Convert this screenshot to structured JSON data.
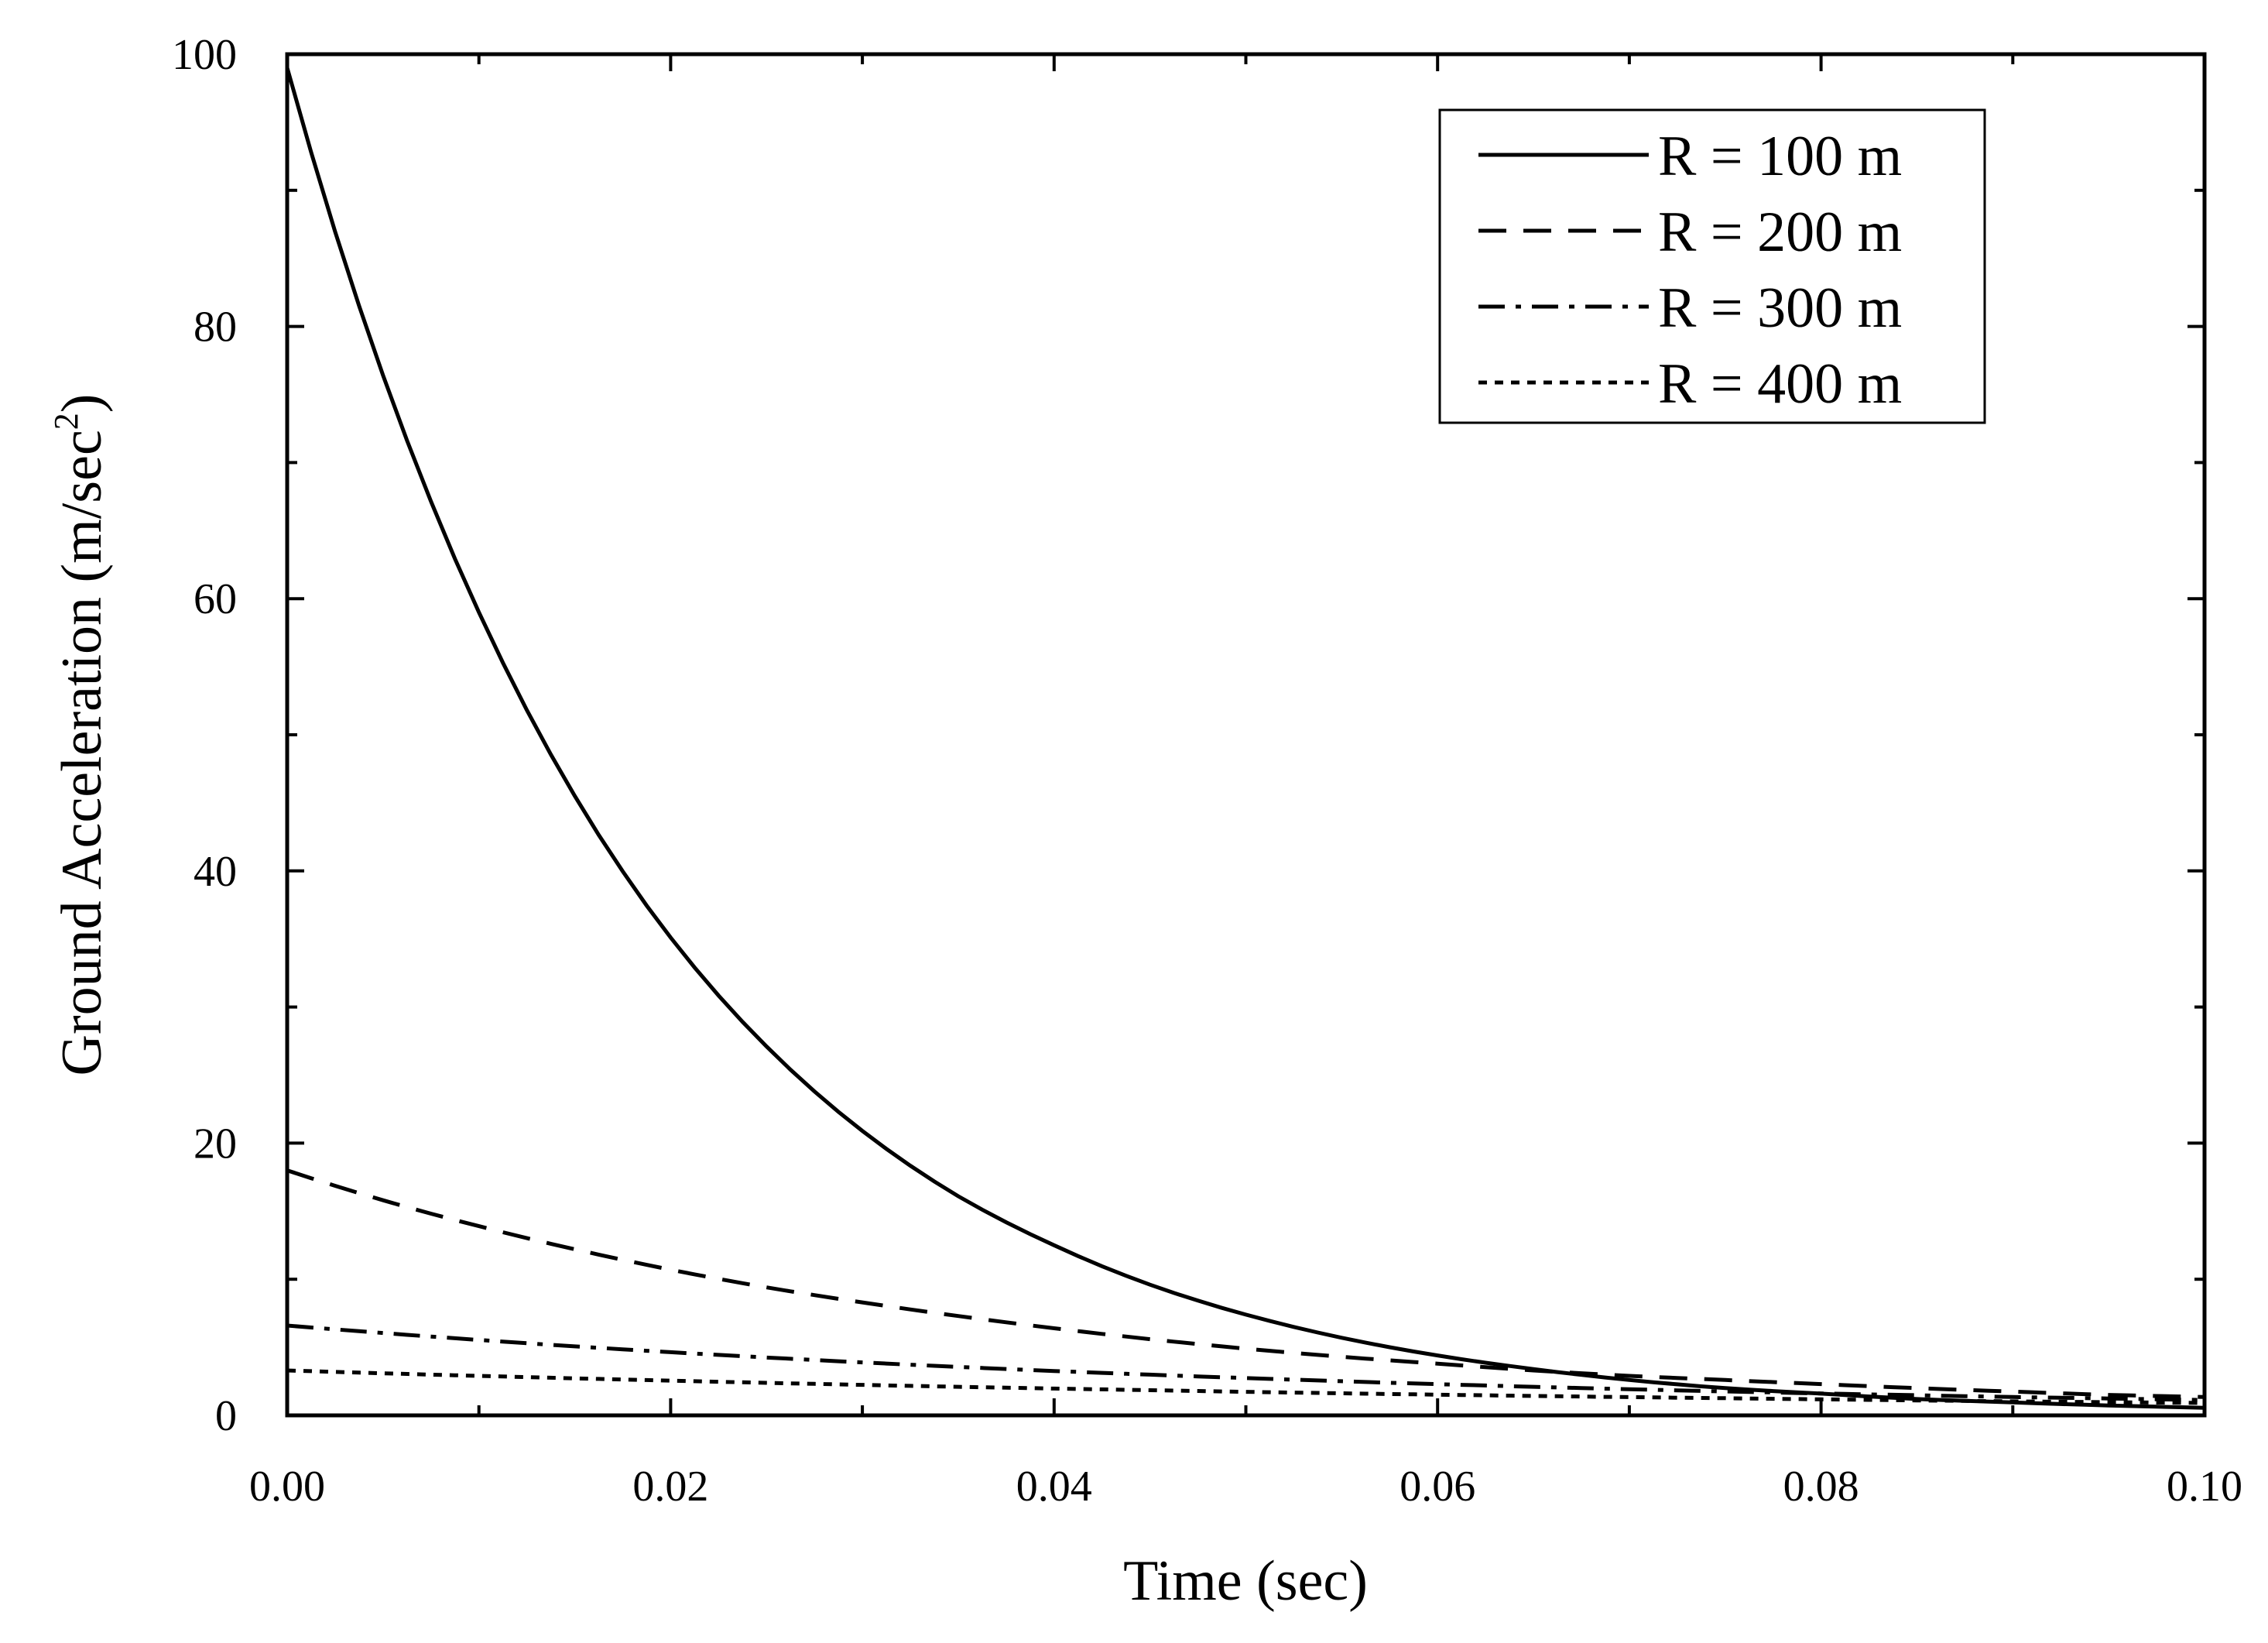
{
  "chart_data": {
    "type": "line",
    "title": "",
    "xlabel": "Time (sec)",
    "ylabel": {
      "text": "Ground Acceleration (m/sec",
      "superscript": "2",
      "close": ")"
    },
    "xlim": [
      0,
      0.1
    ],
    "ylim": [
      0,
      100
    ],
    "x_ticks": [
      0,
      0.02,
      0.04,
      0.06,
      0.08,
      0.1
    ],
    "x_tick_labels": [
      "0.00",
      "0.02",
      "0.04",
      "0.06",
      "0.08",
      "0.10"
    ],
    "y_ticks": [
      0,
      20,
      40,
      60,
      80,
      100
    ],
    "y_tick_labels": [
      "0",
      "20",
      "40",
      "60",
      "80",
      "100"
    ],
    "grid": false,
    "legend_position": "top-right",
    "series": [
      {
        "name": "R = 100 m",
        "style": "solid",
        "color": "#000000",
        "x": [
          0,
          0.005,
          0.01,
          0.015,
          0.02,
          0.025,
          0.03,
          0.035,
          0.04,
          0.045,
          0.05,
          0.055,
          0.06,
          0.065,
          0.07,
          0.075,
          0.08,
          0.085,
          0.09,
          0.095,
          0.1
        ],
        "y": [
          99,
          76.4,
          59.0,
          45.5,
          35.1,
          27.1,
          20.9,
          16.1,
          12.5,
          9.6,
          7.4,
          5.7,
          4.4,
          3.4,
          2.6,
          2.0,
          1.6,
          1.2,
          0.95,
          0.73,
          0.56
        ]
      },
      {
        "name": "R = 200 m",
        "style": "dashed",
        "color": "#000000",
        "x": [
          0,
          0.005,
          0.01,
          0.015,
          0.02,
          0.025,
          0.03,
          0.035,
          0.04,
          0.045,
          0.05,
          0.055,
          0.06,
          0.065,
          0.07,
          0.075,
          0.08,
          0.085,
          0.09,
          0.095,
          0.1
        ],
        "y": [
          18,
          15.8,
          13.9,
          12.2,
          10.7,
          9.4,
          8.3,
          7.3,
          6.4,
          5.6,
          4.9,
          4.3,
          3.8,
          3.3,
          2.9,
          2.6,
          2.3,
          2.0,
          1.75,
          1.5,
          1.35
        ]
      },
      {
        "name": "R = 300 m",
        "style": "dashdot",
        "color": "#000000",
        "x": [
          0,
          0.005,
          0.01,
          0.015,
          0.02,
          0.025,
          0.03,
          0.035,
          0.04,
          0.045,
          0.05,
          0.055,
          0.06,
          0.065,
          0.07,
          0.075,
          0.08,
          0.085,
          0.09,
          0.095,
          0.1
        ],
        "y": [
          6.6,
          6.05,
          5.54,
          5.07,
          4.64,
          4.25,
          3.89,
          3.56,
          3.26,
          2.99,
          2.74,
          2.51,
          2.29,
          2.1,
          1.92,
          1.76,
          1.61,
          1.48,
          1.35,
          1.24,
          1.13
        ]
      },
      {
        "name": "R = 400 m",
        "style": "dotted",
        "color": "#000000",
        "x": [
          0,
          0.005,
          0.01,
          0.015,
          0.02,
          0.025,
          0.03,
          0.035,
          0.04,
          0.045,
          0.05,
          0.055,
          0.06,
          0.065,
          0.07,
          0.075,
          0.08,
          0.085,
          0.09,
          0.095,
          0.1
        ],
        "y": [
          3.3,
          3.09,
          2.9,
          2.72,
          2.55,
          2.39,
          2.24,
          2.1,
          1.97,
          1.85,
          1.73,
          1.62,
          1.52,
          1.43,
          1.34,
          1.26,
          1.18,
          1.1,
          1.03,
          0.97,
          0.91
        ]
      }
    ]
  }
}
